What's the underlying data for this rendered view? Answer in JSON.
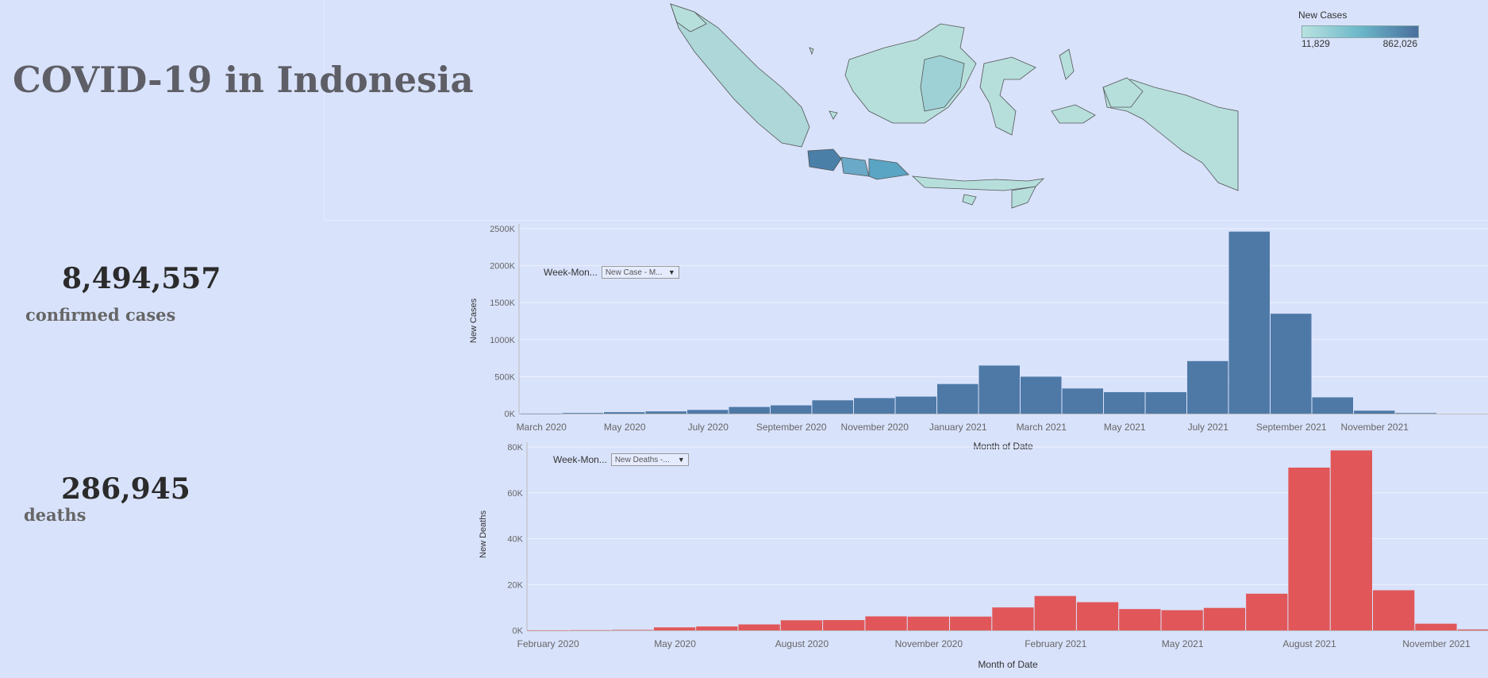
{
  "title": "COVID-19 in Indonesia",
  "kpis": {
    "cases_value": "8,494,557",
    "cases_label": "confirmed cases",
    "deaths_value": "286,945",
    "deaths_label": "deaths"
  },
  "map_legend": {
    "title": "New Cases",
    "min_label": "11,829",
    "max_label": "862,026"
  },
  "colors": {
    "background": "#d8e2fb",
    "cases_bar": "#4e79a7",
    "deaths_bar": "#e15759",
    "map_low": "#b9e2e0",
    "map_high": "#4a6f9e"
  },
  "filters": {
    "cases_label": "Week-Mon...",
    "cases_value": "New Case - M...",
    "deaths_label": "Week-Mon...",
    "deaths_value": "New Deaths -..."
  },
  "chart_data": [
    {
      "type": "bar",
      "xlabel": "Month of Date",
      "ylabel": "New Cases",
      "ylim": [
        0,
        2500000
      ],
      "yticks": [
        0,
        500000,
        1000000,
        1500000,
        2000000,
        2500000
      ],
      "ytick_labels": [
        "0K",
        "500K",
        "1000K",
        "1500K",
        "2000K",
        "2500K"
      ],
      "grid": true,
      "x_start": "2020-03",
      "bin_months": 1,
      "tick_labels": [
        "March 2020",
        "May 2020",
        "July 2020",
        "September 2020",
        "November 2020",
        "January 2021",
        "March 2021",
        "May 2021",
        "July 2021",
        "September 2021",
        "November 2021"
      ],
      "values": [
        1500,
        9000,
        20000,
        30000,
        50000,
        90000,
        112000,
        180000,
        210000,
        230000,
        400000,
        650000,
        500000,
        340000,
        290000,
        290000,
        710000,
        2460000,
        1350000,
        220000,
        40000,
        8000
      ]
    },
    {
      "type": "bar",
      "xlabel": "Month of Date",
      "ylabel": "New Deaths",
      "ylim": [
        0,
        80000
      ],
      "yticks": [
        0,
        20000,
        40000,
        60000,
        80000
      ],
      "ytick_labels": [
        "0K",
        "20K",
        "40K",
        "60K",
        "80K"
      ],
      "grid": true,
      "x_start": "2020-02",
      "bin_months": 1,
      "tick_labels": [
        "February 2020",
        "May 2020",
        "August 2020",
        "November 2020",
        "February 2021",
        "May 2021",
        "August 2021",
        "November 2021"
      ],
      "values": [
        50,
        100,
        200,
        1300,
        1700,
        2600,
        4400,
        4500,
        6100,
        6000,
        6000,
        10000,
        15000,
        12300,
        9300,
        8800,
        9800,
        16000,
        71000,
        78500,
        17500,
        2900,
        400
      ]
    }
  ]
}
